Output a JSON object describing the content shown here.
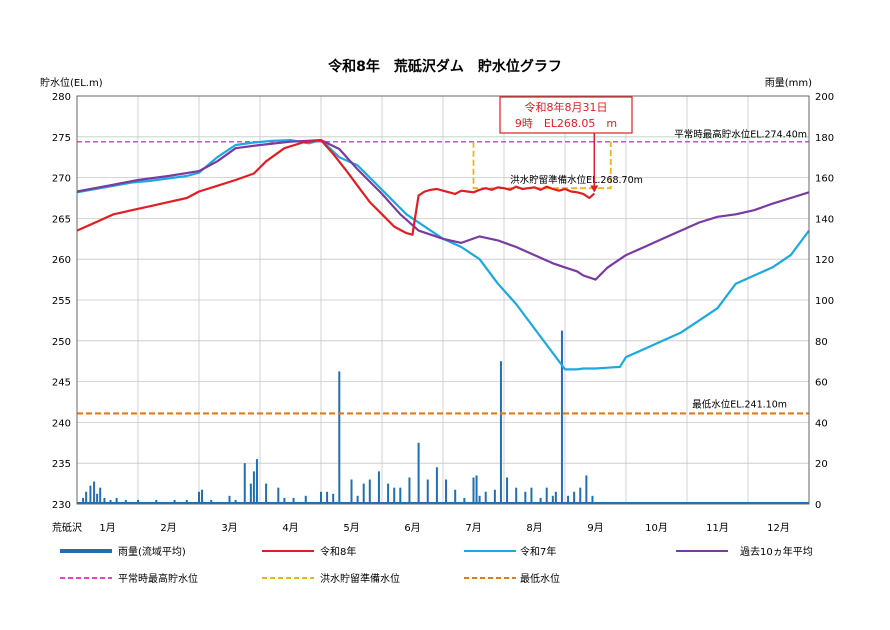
{
  "chart_data": {
    "type": "line",
    "title": "令和8年　荒砥沢ダム　貯水位グラフ",
    "ylabel": "貯水位(EL.m)",
    "y2label": "雨量(mm)",
    "xlabel": "荒砥沢",
    "x_unit": "month",
    "xlim": [
      1,
      13
    ],
    "ylim": [
      230,
      280
    ],
    "y2lim": [
      0,
      200
    ],
    "yticks": [
      230,
      235,
      240,
      245,
      250,
      255,
      260,
      265,
      270,
      275,
      280
    ],
    "y2ticks": [
      0,
      20,
      40,
      60,
      80,
      100,
      120,
      140,
      160,
      180,
      200
    ],
    "month_labels": [
      "1月",
      "2月",
      "3月",
      "4月",
      "5月",
      "6月",
      "7月",
      "8月",
      "9月",
      "10月",
      "11月",
      "12月"
    ],
    "grid": true,
    "legend_position": "bottom",
    "colors": {
      "rain": "#1f6fb2",
      "r8": "#e01e24",
      "r7": "#1ba9e1",
      "avg": "#7b3aa0",
      "normal_max": "#e83fd4",
      "flood": "#f2b21b",
      "min": "#e07b1a"
    },
    "reference_lines": {
      "normal_max": {
        "label": "平常時最高貯水位EL.274.40m",
        "y": 274.4
      },
      "flood": {
        "label": "洪水貯留準備水位EL.268.70m",
        "y": 268.7,
        "x_start": 7.5,
        "x_end": 9.75
      },
      "min": {
        "label": "最低水位EL.241.10m",
        "y": 241.1
      }
    },
    "annotation": {
      "line1": "令和8年8月31日",
      "line2": "9時　EL268.05　m",
      "x": 9.48,
      "y": 268.05
    },
    "series": [
      {
        "key": "r8",
        "name": "令和8年",
        "x": [
          1.0,
          1.3,
          1.6,
          1.9,
          2.2,
          2.5,
          2.8,
          3.0,
          3.3,
          3.6,
          3.9,
          4.1,
          4.4,
          4.7,
          5.0,
          5.2,
          5.4,
          5.6,
          5.8,
          6.0,
          6.2,
          6.4,
          6.5,
          6.53,
          6.6,
          6.7,
          6.8,
          6.9,
          7.0,
          7.1,
          7.2,
          7.3,
          7.4,
          7.5,
          7.6,
          7.7,
          7.8,
          7.9,
          8.0,
          8.1,
          8.2,
          8.3,
          8.4,
          8.5,
          8.6,
          8.7,
          8.8,
          8.9,
          9.0,
          9.1,
          9.2,
          9.3,
          9.4,
          9.48
        ],
        "y": [
          263.5,
          264.5,
          265.5,
          266.0,
          266.5,
          267.0,
          267.5,
          268.3,
          269.0,
          269.7,
          270.5,
          272.0,
          273.6,
          274.3,
          274.6,
          272.9,
          271.0,
          269.0,
          267.0,
          265.5,
          264.0,
          263.2,
          263.0,
          264.5,
          267.8,
          268.3,
          268.5,
          268.6,
          268.4,
          268.2,
          268.0,
          268.4,
          268.3,
          268.2,
          268.5,
          268.7,
          268.5,
          268.8,
          268.7,
          268.5,
          268.9,
          268.6,
          268.7,
          268.8,
          268.5,
          268.9,
          268.6,
          268.4,
          268.6,
          268.3,
          268.2,
          268.0,
          267.5,
          268.05
        ]
      },
      {
        "key": "r7",
        "name": "令和7年",
        "x": [
          1.0,
          1.3,
          1.6,
          1.9,
          2.2,
          2.5,
          2.8,
          3.0,
          3.3,
          3.6,
          3.9,
          4.2,
          4.5,
          4.8,
          5.0,
          5.3,
          5.6,
          6.0,
          6.4,
          6.7,
          7.0,
          7.3,
          7.6,
          7.9,
          8.2,
          8.5,
          8.8,
          9.0,
          9.2,
          9.3,
          9.5,
          9.7,
          9.9,
          10.0,
          10.3,
          10.6,
          10.9,
          11.2,
          11.5,
          11.8,
          12.1,
          12.4,
          12.7,
          13.0
        ],
        "y": [
          268.2,
          268.6,
          269.0,
          269.4,
          269.6,
          269.9,
          270.2,
          270.6,
          272.5,
          274.0,
          274.3,
          274.5,
          274.6,
          274.2,
          274.6,
          272.5,
          271.5,
          268.5,
          265.5,
          264.0,
          262.5,
          261.5,
          260.0,
          257.0,
          254.5,
          251.5,
          248.5,
          246.5,
          246.5,
          246.6,
          246.6,
          246.7,
          246.8,
          248.0,
          249.0,
          250.0,
          251.0,
          252.5,
          254.0,
          257.0,
          258.0,
          259.0,
          260.5,
          263.5
        ]
      },
      {
        "key": "avg",
        "name": "過去10ヵ年平均",
        "x": [
          1.0,
          1.5,
          2.0,
          2.5,
          3.0,
          3.3,
          3.6,
          4.0,
          4.5,
          5.0,
          5.3,
          5.6,
          6.0,
          6.3,
          6.6,
          7.0,
          7.3,
          7.6,
          7.9,
          8.2,
          8.5,
          8.8,
          9.0,
          9.2,
          9.3,
          9.5,
          9.7,
          10.0,
          10.3,
          10.6,
          10.9,
          11.2,
          11.5,
          11.8,
          12.1,
          12.4,
          12.7,
          13.0
        ],
        "y": [
          268.3,
          269.0,
          269.7,
          270.2,
          270.8,
          272.0,
          273.6,
          274.0,
          274.4,
          274.6,
          273.5,
          271.0,
          268.0,
          265.5,
          263.5,
          262.5,
          262.0,
          262.8,
          262.3,
          261.5,
          260.5,
          259.5,
          259.0,
          258.5,
          258.0,
          257.5,
          259.0,
          260.5,
          261.5,
          262.5,
          263.5,
          264.5,
          265.2,
          265.5,
          266.0,
          266.8,
          267.5,
          268.2
        ]
      }
    ],
    "rain": {
      "name": "雨量(流域平均)",
      "x": [
        1.1,
        1.15,
        1.22,
        1.28,
        1.33,
        1.38,
        1.45,
        1.55,
        1.65,
        1.8,
        2.0,
        2.3,
        2.6,
        2.8,
        3.0,
        3.05,
        3.2,
        3.5,
        3.6,
        3.75,
        3.85,
        3.9,
        3.95,
        4.1,
        4.3,
        4.4,
        4.55,
        4.75,
        5.0,
        5.1,
        5.2,
        5.3,
        5.5,
        5.6,
        5.7,
        5.8,
        5.95,
        6.1,
        6.2,
        6.3,
        6.45,
        6.6,
        6.75,
        6.9,
        7.05,
        7.2,
        7.35,
        7.5,
        7.55,
        7.6,
        7.7,
        7.85,
        7.95,
        8.05,
        8.2,
        8.35,
        8.45,
        8.6,
        8.7,
        8.8,
        8.85,
        8.95,
        9.05,
        9.15,
        9.25,
        9.35,
        9.45
      ],
      "values": [
        3,
        6,
        9,
        11,
        5,
        8,
        3,
        2,
        3,
        2,
        2,
        2,
        2,
        2,
        6,
        7,
        2,
        4,
        2,
        20,
        10,
        16,
        22,
        10,
        8,
        3,
        3,
        4,
        6,
        6,
        5,
        65,
        12,
        4,
        10,
        12,
        16,
        10,
        8,
        8,
        13,
        30,
        12,
        18,
        12,
        7,
        3,
        13,
        14,
        4,
        6,
        7,
        70,
        13,
        8,
        6,
        8,
        3,
        8,
        4,
        6,
        85,
        4,
        6,
        8,
        14,
        4
      ],
      "color": "#1f6fb2"
    }
  },
  "legend": {
    "items": [
      {
        "key": "rain",
        "label": "雨量(流域平均)",
        "style": "thick"
      },
      {
        "key": "r8",
        "label": "令和8年",
        "style": "solid"
      },
      {
        "key": "r7",
        "label": "令和7年",
        "style": "solid"
      },
      {
        "key": "avg",
        "label": "過去10ヵ年平均",
        "style": "solid"
      },
      {
        "key": "normal_max",
        "label": "平常時最高貯水位",
        "style": "dashed"
      },
      {
        "key": "flood",
        "label": "洪水貯留準備水位",
        "style": "dashed"
      },
      {
        "key": "min",
        "label": "最低水位",
        "style": "dashed"
      }
    ]
  }
}
